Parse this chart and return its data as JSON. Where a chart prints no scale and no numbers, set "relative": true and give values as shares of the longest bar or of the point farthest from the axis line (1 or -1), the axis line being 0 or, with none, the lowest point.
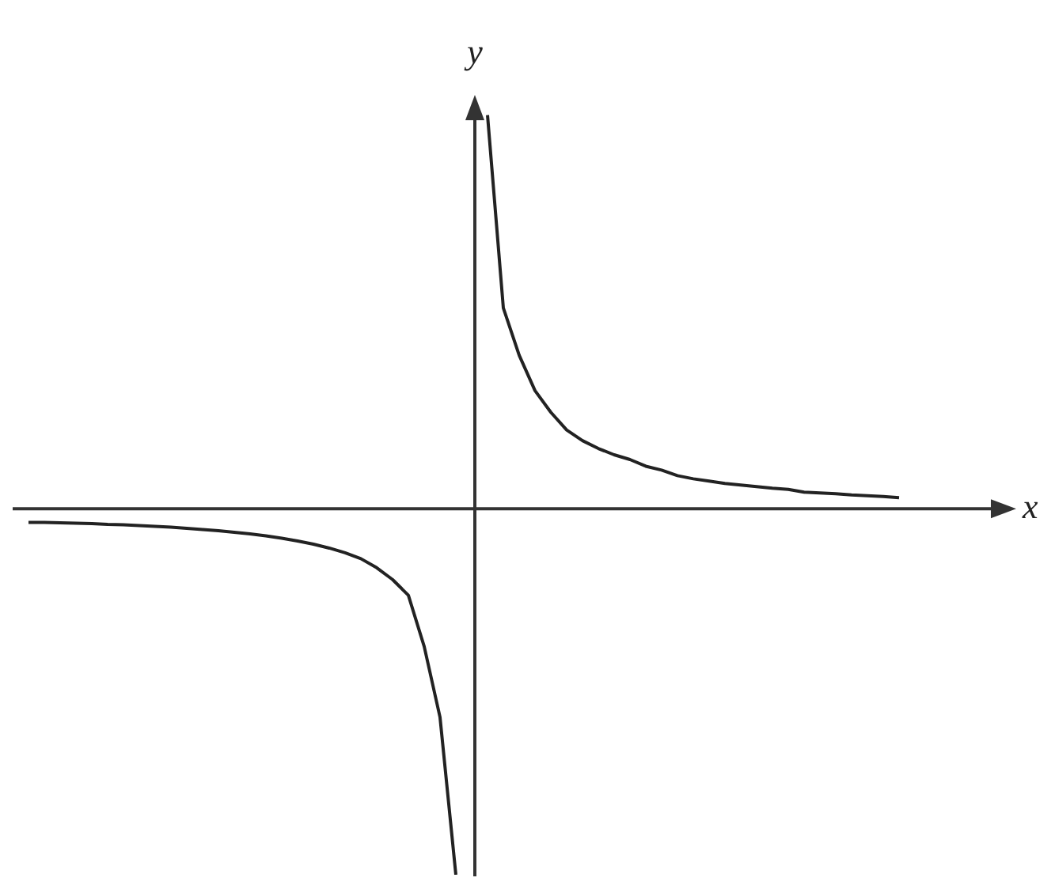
{
  "chart_data": {
    "type": "line",
    "relative": true,
    "xlabel": "x",
    "ylabel": "y",
    "marker": "none",
    "line_style": "solid",
    "categories": [
      null,
      null,
      null,
      null,
      null,
      null,
      null,
      null,
      null,
      null,
      null,
      null,
      null,
      null,
      null,
      null,
      null,
      null,
      null,
      null,
      null,
      null,
      null,
      null,
      null,
      null,
      null,
      null,
      null,
      null,
      null,
      null,
      null,
      null,
      null,
      null,
      null,
      null,
      null,
      null,
      null,
      null,
      null,
      null,
      null,
      null,
      null,
      null,
      null,
      null,
      null,
      null,
      null,
      null,
      null,
      null
    ],
    "series": [
      {
        "color": "#222222",
        "values": [
          -0.035,
          -0.035,
          -0.036,
          -0.037,
          -0.038,
          -0.04,
          -0.041,
          -0.043,
          -0.045,
          -0.047,
          -0.05,
          -0.053,
          -0.056,
          -0.06,
          -0.064,
          -0.069,
          -0.075,
          -0.082,
          -0.09,
          -0.1,
          -0.112,
          -0.127,
          -0.15,
          -0.18,
          -0.22,
          -0.35,
          -0.53,
          -0.93,
          null,
          null,
          null,
          null,
          null,
          null,
          null,
          null,
          null,
          null,
          null,
          null,
          null,
          null,
          null,
          null,
          null,
          null,
          null,
          null,
          null,
          null,
          null,
          null,
          null,
          null,
          null,
          null
        ]
      },
      {
        "color": "#222222",
        "values": [
          null,
          null,
          null,
          null,
          null,
          null,
          null,
          null,
          null,
          null,
          null,
          null,
          null,
          null,
          null,
          null,
          null,
          null,
          null,
          null,
          null,
          null,
          null,
          null,
          null,
          null,
          null,
          null,
          null,
          1,
          0.51,
          0.39,
          0.3,
          0.245,
          0.2,
          0.173,
          0.153,
          0.137,
          0.125,
          0.108,
          0.098,
          0.084,
          0.076,
          0.07,
          0.064,
          0.06,
          0.056,
          0.052,
          0.049,
          0.042,
          0.04,
          0.038,
          0.035,
          0.033,
          0.031,
          0.028
        ]
      }
    ]
  }
}
